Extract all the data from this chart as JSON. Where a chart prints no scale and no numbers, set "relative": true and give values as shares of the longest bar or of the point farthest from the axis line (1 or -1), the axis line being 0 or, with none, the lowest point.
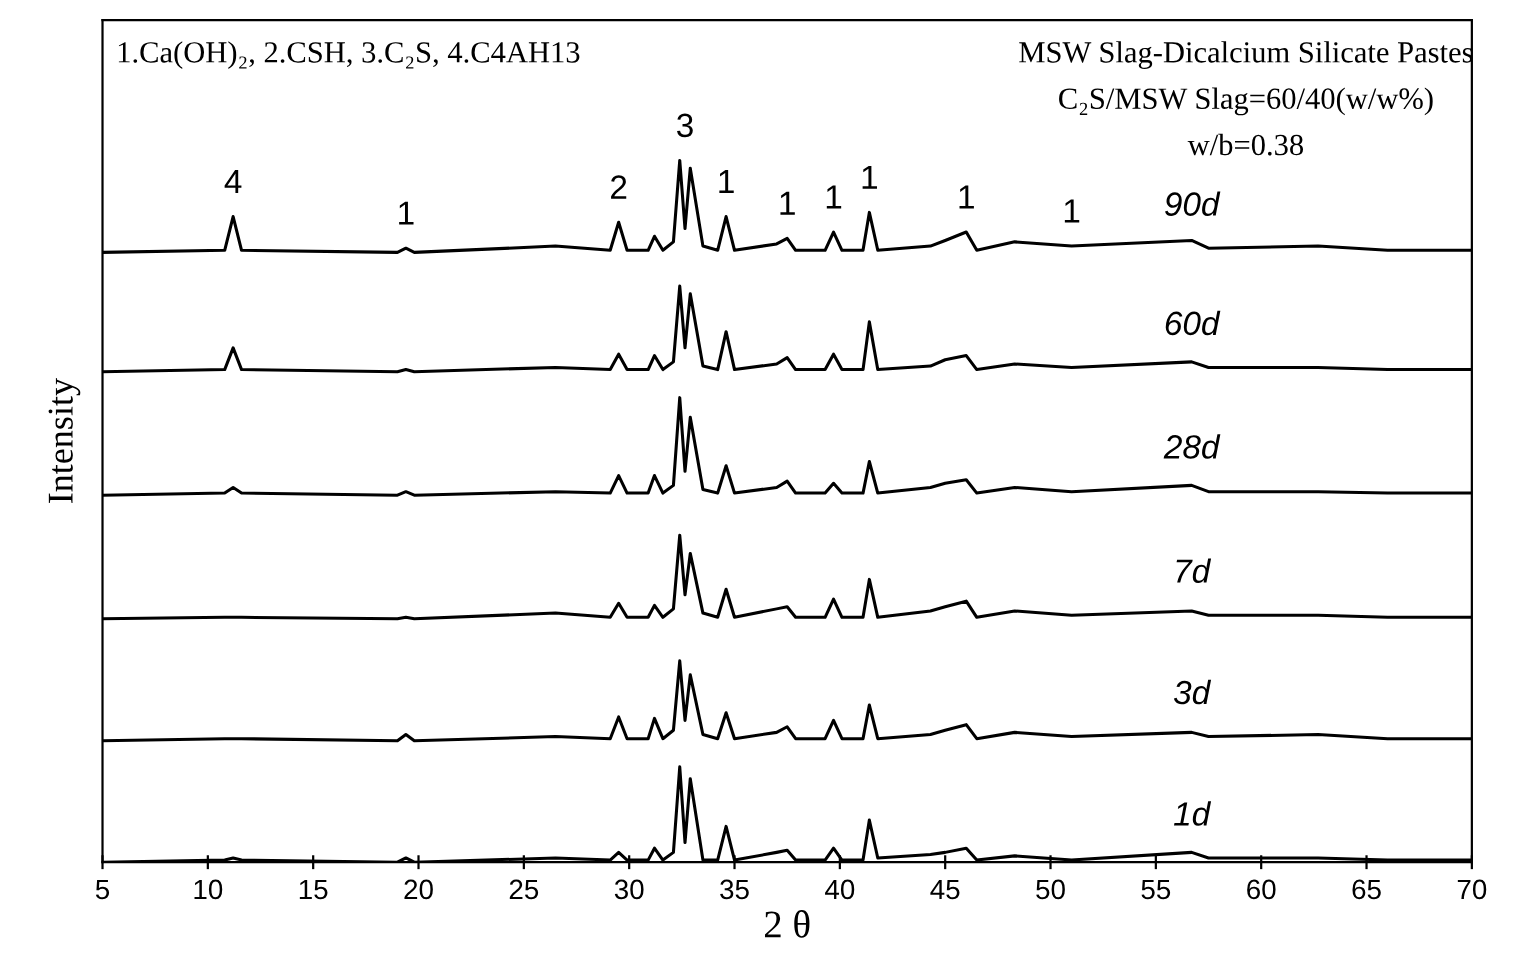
{
  "chart_data": {
    "type": "line",
    "relative": true,
    "xlabel": "2 θ",
    "ylabel": "Intensity",
    "x": [
      5,
      10.8,
      11.2,
      11.6,
      19.0,
      19.4,
      19.8,
      26.5,
      29.1,
      29.5,
      29.9,
      30.9,
      31.2,
      31.6,
      32.1,
      32.4,
      32.65,
      32.9,
      33.5,
      34.2,
      34.6,
      35.0,
      37.0,
      37.5,
      37.9,
      39.3,
      39.7,
      40.1,
      41.1,
      41.4,
      41.8,
      44.3,
      45.0,
      46.0,
      46.5,
      48.3,
      51.0,
      56.7,
      57.5,
      62.7,
      66,
      70
    ],
    "xlim": [
      5,
      70
    ],
    "xticks": [
      5,
      10,
      15,
      20,
      25,
      30,
      35,
      40,
      45,
      50,
      55,
      60,
      65,
      70
    ],
    "grid": false,
    "marker": "none",
    "line_style": "solid",
    "series": [
      {
        "name": "90d",
        "color": "#000000",
        "values": [
          0.869,
          0.872,
          0.92,
          0.872,
          0.869,
          0.875,
          0.869,
          0.878,
          0.872,
          0.912,
          0.872,
          0.872,
          0.892,
          0.872,
          0.884,
          1.0,
          0.903,
          0.989,
          0.878,
          0.872,
          0.92,
          0.872,
          0.881,
          0.889,
          0.872,
          0.872,
          0.898,
          0.872,
          0.872,
          0.926,
          0.872,
          0.878,
          0.886,
          0.898,
          0.872,
          0.884,
          0.878,
          0.886,
          0.875,
          0.878,
          0.872,
          0.872
        ]
      },
      {
        "name": "60d",
        "color": "#000000",
        "values": [
          0.699,
          0.702,
          0.733,
          0.702,
          0.699,
          0.702,
          0.699,
          0.705,
          0.702,
          0.724,
          0.702,
          0.702,
          0.722,
          0.702,
          0.713,
          0.821,
          0.733,
          0.81,
          0.707,
          0.702,
          0.756,
          0.702,
          0.71,
          0.719,
          0.702,
          0.702,
          0.724,
          0.702,
          0.702,
          0.77,
          0.702,
          0.707,
          0.716,
          0.722,
          0.702,
          0.71,
          0.705,
          0.713,
          0.705,
          0.705,
          0.702,
          0.702
        ]
      },
      {
        "name": "28d",
        "color": "#000000",
        "values": [
          0.523,
          0.526,
          0.534,
          0.526,
          0.523,
          0.528,
          0.523,
          0.528,
          0.526,
          0.551,
          0.526,
          0.526,
          0.551,
          0.526,
          0.537,
          0.662,
          0.557,
          0.634,
          0.531,
          0.526,
          0.565,
          0.526,
          0.534,
          0.543,
          0.526,
          0.526,
          0.54,
          0.526,
          0.526,
          0.571,
          0.526,
          0.534,
          0.54,
          0.545,
          0.526,
          0.534,
          0.528,
          0.537,
          0.528,
          0.528,
          0.526,
          0.526
        ]
      },
      {
        "name": "7d",
        "color": "#000000",
        "values": [
          0.347,
          0.349,
          0.349,
          0.349,
          0.347,
          0.349,
          0.347,
          0.355,
          0.349,
          0.369,
          0.349,
          0.349,
          0.366,
          0.349,
          0.361,
          0.466,
          0.381,
          0.44,
          0.355,
          0.349,
          0.389,
          0.349,
          0.361,
          0.364,
          0.349,
          0.349,
          0.375,
          0.349,
          0.349,
          0.403,
          0.349,
          0.358,
          0.364,
          0.372,
          0.349,
          0.358,
          0.352,
          0.358,
          0.352,
          0.352,
          0.349,
          0.349
        ]
      },
      {
        "name": "3d",
        "color": "#000000",
        "values": [
          0.173,
          0.176,
          0.176,
          0.176,
          0.173,
          0.182,
          0.173,
          0.179,
          0.176,
          0.207,
          0.176,
          0.176,
          0.205,
          0.176,
          0.188,
          0.287,
          0.202,
          0.267,
          0.182,
          0.176,
          0.213,
          0.176,
          0.185,
          0.193,
          0.176,
          0.176,
          0.202,
          0.176,
          0.176,
          0.224,
          0.176,
          0.182,
          0.188,
          0.196,
          0.176,
          0.185,
          0.179,
          0.185,
          0.179,
          0.182,
          0.176,
          0.176
        ]
      },
      {
        "name": "1d",
        "color": "#000000",
        "values": [
          0,
          0.003,
          0.006,
          0.003,
          0,
          0.006,
          0,
          0.006,
          0.003,
          0.014,
          0.003,
          0.003,
          0.02,
          0.003,
          0.014,
          0.136,
          0.028,
          0.119,
          0.003,
          0.003,
          0.051,
          0.003,
          0.014,
          0.017,
          0.003,
          0.003,
          0.02,
          0.003,
          0.003,
          0.06,
          0.006,
          0.011,
          0.014,
          0.02,
          0.003,
          0.009,
          0.003,
          0.014,
          0.006,
          0.006,
          0.003,
          0.003
        ]
      }
    ],
    "annotations": [
      "1.Ca(OH)₂, 2.CSH, 3.C₂S, 4.C4AH13",
      "MSW Slag-Dicalcium Silicate Pastes",
      "C₂S/MSW Slag=60/40(w/w%)",
      "w/b=0.38",
      {
        "text": "4",
        "x": 11.2,
        "y": 0.92
      },
      {
        "text": "1",
        "x": 19.4,
        "y": 0.875
      },
      {
        "text": "2",
        "x": 29.5,
        "y": 0.912
      },
      {
        "text": "3",
        "x": 32.65,
        "y": 1.0
      },
      {
        "text": "1",
        "x": 34.6,
        "y": 0.92
      },
      {
        "text": "1",
        "x": 37.5,
        "y": 0.889
      },
      {
        "text": "1",
        "x": 39.7,
        "y": 0.898
      },
      {
        "text": "1",
        "x": 41.4,
        "y": 0.926
      },
      {
        "text": "1",
        "x": 46.0,
        "y": 0.898
      },
      {
        "text": "1",
        "x": 51.0,
        "y": 0.878
      }
    ]
  }
}
